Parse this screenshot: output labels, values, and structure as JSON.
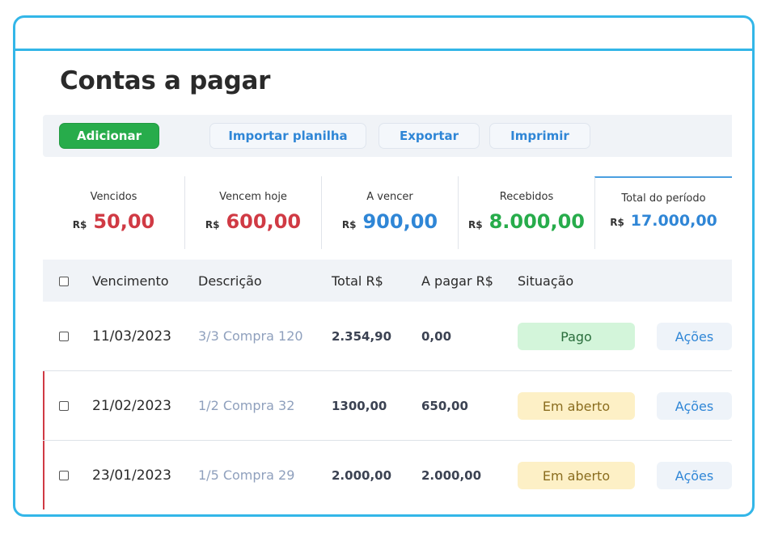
{
  "page": {
    "title": "Contas a pagar"
  },
  "toolbar": {
    "add_label": "Adicionar",
    "import_label": "Importar planilha",
    "export_label": "Exportar",
    "print_label": "Imprimir"
  },
  "summary": [
    {
      "label": "Vencidos",
      "currency": "R$",
      "value": "50,00",
      "color": "#d03a44"
    },
    {
      "label": "Vencem hoje",
      "currency": "R$",
      "value": "600,00",
      "color": "#d03a44"
    },
    {
      "label": "A vencer",
      "currency": "R$",
      "value": "900,00",
      "color": "#2f86d6"
    },
    {
      "label": "Recebidos",
      "currency": "R$",
      "value": "8.000,00",
      "color": "#27ac4b"
    },
    {
      "label": "Total do período",
      "currency": "R$",
      "value": "17.000,00",
      "color": "#2f86d6"
    }
  ],
  "table": {
    "headers": {
      "due_date": "Vencimento",
      "description": "Descrição",
      "total": "Total R$",
      "to_pay": "A pagar R$",
      "status": "Situação"
    },
    "rows": [
      {
        "due_date": "11/03/2023",
        "description": "3/3 Compra 120",
        "total": "2.354,90",
        "to_pay": "0,00",
        "status": "Pago",
        "action": "Ações"
      },
      {
        "due_date": "21/02/2023",
        "description": "1/2 Compra 32",
        "total": "1300,00",
        "to_pay": "650,00",
        "status": "Em aberto",
        "action": "Ações"
      },
      {
        "due_date": "23/01/2023",
        "description": "1/5 Compra 29",
        "total": "2.000,00",
        "to_pay": "2.000,00",
        "status": "Em aberto",
        "action": "Ações"
      }
    ]
  },
  "colors": {
    "frame": "#33b6e8",
    "primary_green": "#27ac4b",
    "link_blue": "#2f86d6",
    "overdue_red": "#d03a44"
  }
}
